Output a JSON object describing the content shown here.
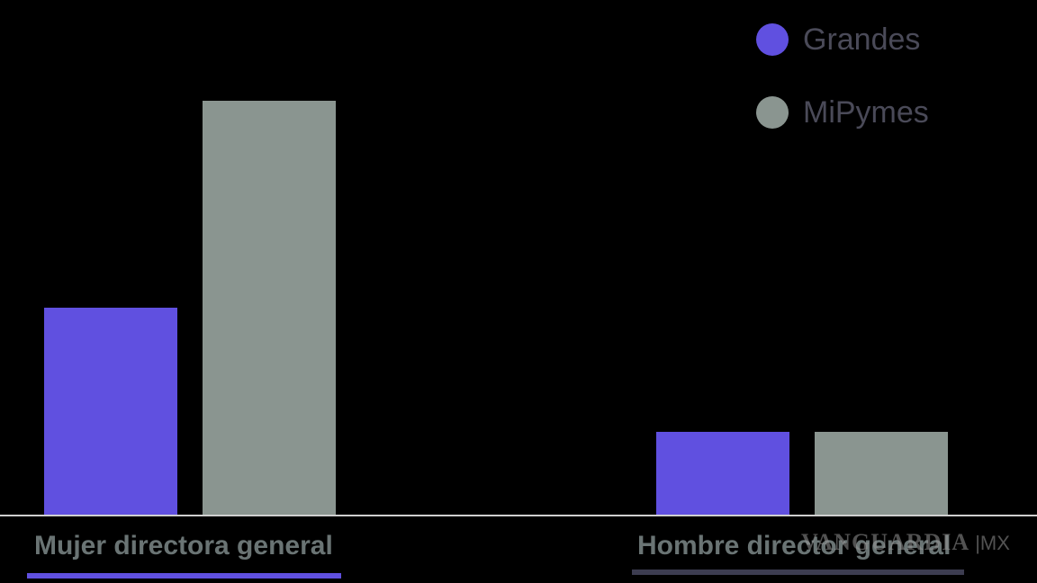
{
  "chart_data": {
    "type": "bar",
    "categories": [
      "Mujer directora general",
      "Hombre director general"
    ],
    "series": [
      {
        "name": "Grandes",
        "color": "#6050e0",
        "values": [
          20,
          8
        ]
      },
      {
        "name": "MiPymes",
        "color": "#8a9590",
        "values": [
          40,
          8
        ]
      }
    ],
    "ylim": [
      0,
      48
    ],
    "grid": false,
    "legend_position": "top-right",
    "axis_color": "#cfcfcf"
  },
  "watermark": {
    "brand": "VANGUARDIA",
    "suffix": "MX"
  }
}
